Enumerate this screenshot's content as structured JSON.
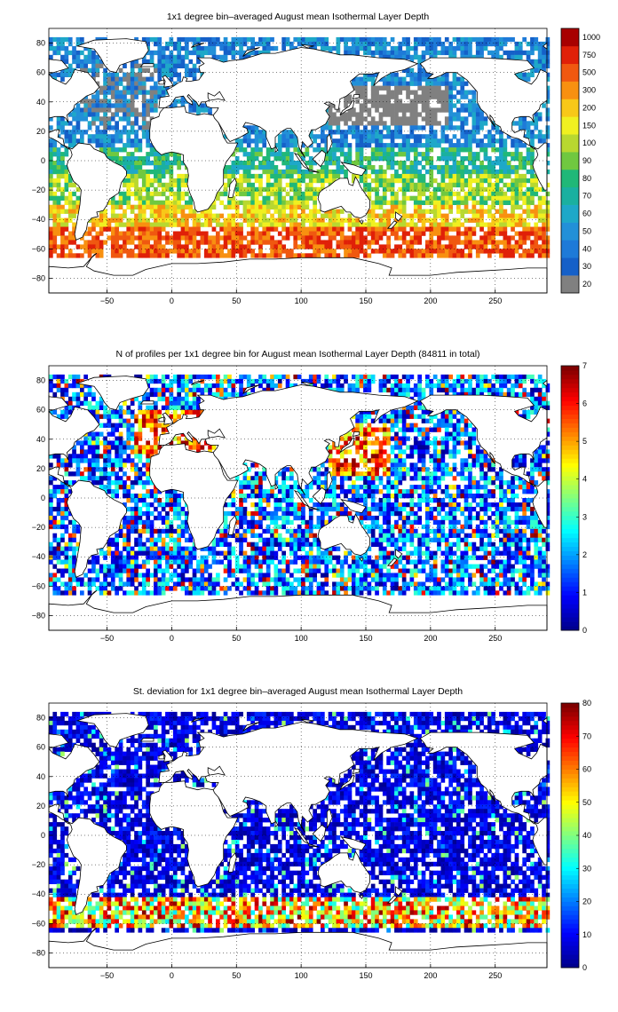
{
  "chart_data": [
    {
      "type": "heatmap",
      "title": "1x1 degree bin–averaged August mean Isothermal Layer Depth",
      "xlabel": "",
      "ylabel": "",
      "xlim": [
        -95,
        290
      ],
      "ylim": [
        -90,
        90
      ],
      "x_ticks": [
        -50,
        0,
        50,
        100,
        150,
        200,
        250
      ],
      "y_ticks": [
        80,
        60,
        40,
        20,
        0,
        -20,
        -40,
        -60,
        -80
      ],
      "colorbar": {
        "scale": "categorical",
        "labels": [
          "20",
          "30",
          "40",
          "50",
          "60",
          "70",
          "80",
          "90",
          "100",
          "150",
          "200",
          "300",
          "500",
          "750",
          "1000"
        ],
        "colors": [
          "#808080",
          "#1560c8",
          "#1e7ad8",
          "#2290d8",
          "#1ea8c8",
          "#1ab0a0",
          "#20b878",
          "#70c840",
          "#b8d830",
          "#f0f020",
          "#f8c818",
          "#f89010",
          "#f05810",
          "#e02008",
          "#a80000"
        ]
      },
      "grid": true
    },
    {
      "type": "heatmap",
      "title": "N of profiles per 1x1 degree bin for August mean Isothermal Layer Depth  (84811 in total)",
      "xlabel": "",
      "ylabel": "",
      "xlim": [
        -95,
        290
      ],
      "ylim": [
        -90,
        90
      ],
      "x_ticks": [
        -50,
        0,
        50,
        100,
        150,
        200,
        250
      ],
      "y_ticks": [
        80,
        60,
        40,
        20,
        0,
        -20,
        -40,
        -60,
        -80
      ],
      "colorbar": {
        "scale": "continuous",
        "min": 0,
        "max": 7,
        "ticks": [
          0,
          1,
          2,
          3,
          4,
          5,
          6,
          7
        ]
      },
      "total_profiles": 84811,
      "grid": true
    },
    {
      "type": "heatmap",
      "title": "St. deviation for 1x1 degree bin–averaged August mean Isothermal Layer Depth",
      "xlabel": "",
      "ylabel": "",
      "xlim": [
        -95,
        290
      ],
      "ylim": [
        -90,
        90
      ],
      "x_ticks": [
        -50,
        0,
        50,
        100,
        150,
        200,
        250
      ],
      "y_ticks": [
        80,
        60,
        40,
        20,
        0,
        -20,
        -40,
        -60,
        -80
      ],
      "colorbar": {
        "scale": "continuous",
        "min": 0,
        "max": 80,
        "ticks": [
          0,
          10,
          20,
          30,
          40,
          50,
          60,
          70,
          80
        ]
      },
      "grid": true
    }
  ]
}
